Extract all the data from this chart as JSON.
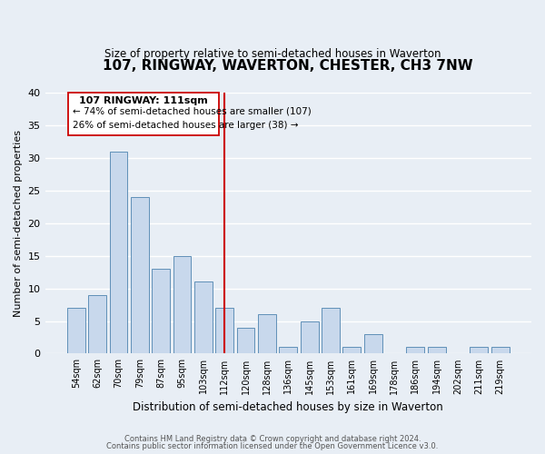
{
  "title": "107, RINGWAY, WAVERTON, CHESTER, CH3 7NW",
  "subtitle": "Size of property relative to semi-detached houses in Waverton",
  "xlabel": "Distribution of semi-detached houses by size in Waverton",
  "ylabel": "Number of semi-detached properties",
  "bar_color": "#c8d8ec",
  "bar_edge_color": "#6090b8",
  "background_color": "#e8eef5",
  "grid_color": "#ffffff",
  "tick_labels": [
    "54sqm",
    "62sqm",
    "70sqm",
    "79sqm",
    "87sqm",
    "95sqm",
    "103sqm",
    "112sqm",
    "120sqm",
    "128sqm",
    "136sqm",
    "145sqm",
    "153sqm",
    "161sqm",
    "169sqm",
    "178sqm",
    "186sqm",
    "194sqm",
    "202sqm",
    "211sqm",
    "219sqm"
  ],
  "bar_heights": [
    7,
    9,
    31,
    24,
    13,
    15,
    11,
    7,
    4,
    6,
    1,
    5,
    7,
    1,
    3,
    0,
    1,
    1,
    0,
    1,
    1
  ],
  "vline_index": 7,
  "vline_color": "#cc0000",
  "ylim": [
    0,
    40
  ],
  "yticks": [
    0,
    5,
    10,
    15,
    20,
    25,
    30,
    35,
    40
  ],
  "annotation_title": "107 RINGWAY: 111sqm",
  "annotation_line1": "← 74% of semi-detached houses are smaller (107)",
  "annotation_line2": "26% of semi-detached houses are larger (38) →",
  "footer1": "Contains HM Land Registry data © Crown copyright and database right 2024.",
  "footer2": "Contains public sector information licensed under the Open Government Licence v3.0."
}
